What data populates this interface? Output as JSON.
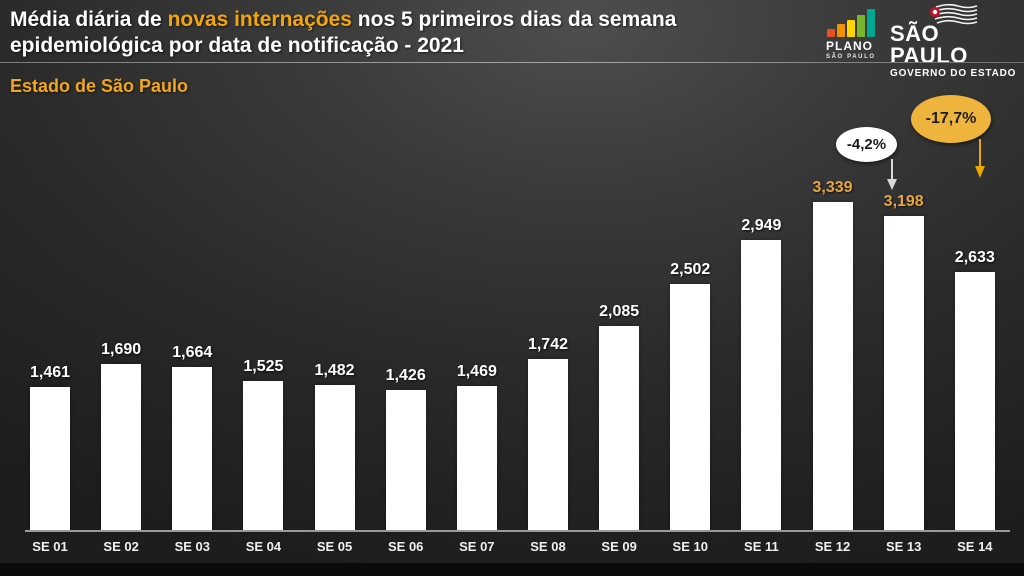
{
  "header": {
    "title_parts": {
      "prefix": "Média diária de ",
      "highlight": "novas internações",
      "suffix": " nos 5 primeiros dias da semana epidemiológica por data de notificação - 2021"
    },
    "subtitle": "Estado de São Paulo",
    "logos": {
      "plano": {
        "line1": "PLANO",
        "line2": "SÃO PAULO",
        "bar_colors": [
          "#e8521f",
          "#f39200",
          "#ffd500",
          "#76b82a",
          "#00a88f"
        ]
      },
      "gov": {
        "line1": "SÃO PAULO",
        "line2": "GOVERNO DO ESTADO"
      }
    }
  },
  "chart_data": {
    "type": "bar",
    "title": "Média diária de novas internações nos 5 primeiros dias da semana epidemiológica por data de notificação - 2021",
    "subtitle": "Estado de São Paulo",
    "categories": [
      "SE 01",
      "SE 02",
      "SE 03",
      "SE 04",
      "SE 05",
      "SE 06",
      "SE 07",
      "SE 08",
      "SE 09",
      "SE 10",
      "SE 11",
      "SE 12",
      "SE 13",
      "SE 14"
    ],
    "values": [
      1461,
      1690,
      1664,
      1525,
      1482,
      1426,
      1469,
      1742,
      2085,
      2502,
      2949,
      3339,
      3198,
      2633
    ],
    "value_labels": [
      "1,461",
      "1,690",
      "1,664",
      "1,525",
      "1,482",
      "1,426",
      "1,469",
      "1,742",
      "2,085",
      "2,502",
      "2,949",
      "3,339",
      "3,198",
      "2,633"
    ],
    "xlabel": "",
    "ylabel": "",
    "ylim": [
      0,
      3400
    ],
    "grid": false,
    "legend": false,
    "bar_color": "#ffffff",
    "label_color_default": "#ffffff",
    "label_color_highlight": "#e9a63b",
    "highlight_label_indices": [
      11,
      12
    ],
    "annotations": [
      {
        "text": "-4,2%",
        "bubble_color": "#ffffff",
        "text_color": "#1c1c1c",
        "arrow_color": "#d9d9d9",
        "points_to": "SE 13"
      },
      {
        "text": "-17,7%",
        "bubble_color": "#efb43c",
        "text_color": "#1f1f1f",
        "arrow_color": "#eaa800",
        "points_to": "SE 14"
      }
    ],
    "background_color": "#2e2e2e",
    "accent_color": "#f2a50c"
  }
}
